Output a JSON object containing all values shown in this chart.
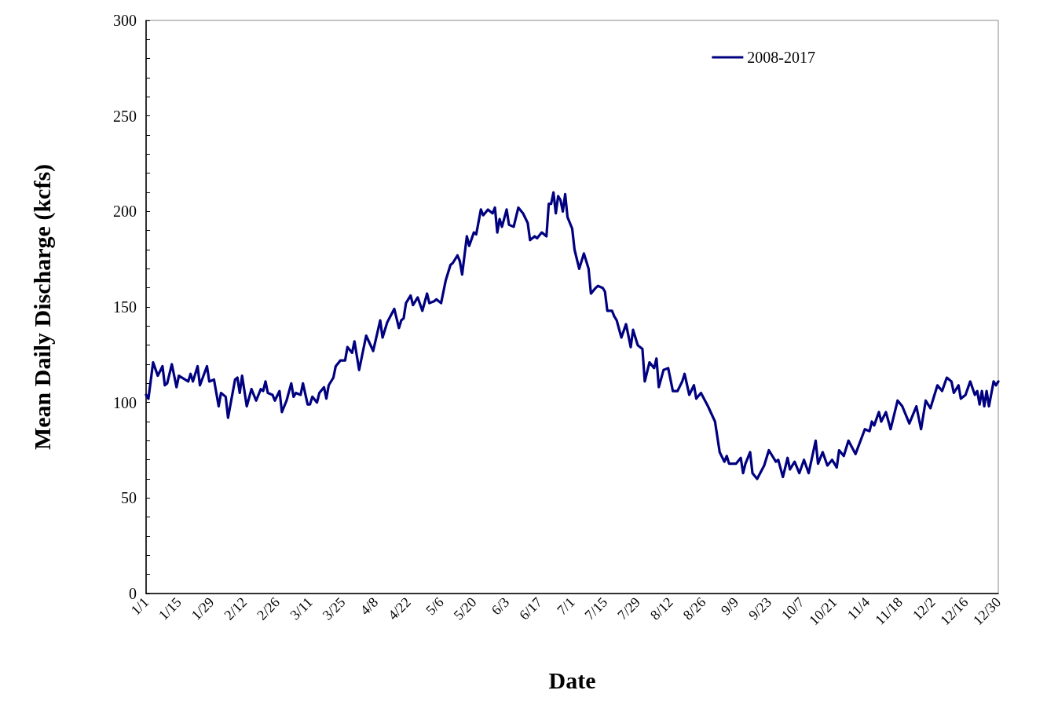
{
  "chart_data": {
    "type": "line",
    "xlabel": "Date",
    "ylabel": "Mean Daily Discharge (kcfs)",
    "legend": "top right",
    "marker": "none",
    "line_style": "solid",
    "xlim": [
      "--01-01",
      "--12-30"
    ],
    "xticks": [
      {
        "value": "--01-01",
        "label": "1/1"
      },
      {
        "value": "--01-15",
        "label": "1/15"
      },
      {
        "value": "--01-29",
        "label": "1/29"
      },
      {
        "value": "--02-12",
        "label": "2/12"
      },
      {
        "value": "--02-26",
        "label": "2/26"
      },
      {
        "value": "--03-11",
        "label": "3/11"
      },
      {
        "value": "--03-25",
        "label": "3/25"
      },
      {
        "value": "--04-08",
        "label": "4/8"
      },
      {
        "value": "--04-22",
        "label": "4/22"
      },
      {
        "value": "--05-06",
        "label": "5/6"
      },
      {
        "value": "--05-20",
        "label": "5/20"
      },
      {
        "value": "--06-03",
        "label": "6/3"
      },
      {
        "value": "--06-17",
        "label": "6/17"
      },
      {
        "value": "--07-01",
        "label": "7/1"
      },
      {
        "value": "--07-15",
        "label": "7/15"
      },
      {
        "value": "--07-29",
        "label": "7/29"
      },
      {
        "value": "--08-12",
        "label": "8/12"
      },
      {
        "value": "--08-26",
        "label": "8/26"
      },
      {
        "value": "--09-09",
        "label": "9/9"
      },
      {
        "value": "--09-23",
        "label": "9/23"
      },
      {
        "value": "--10-07",
        "label": "10/7"
      },
      {
        "value": "--10-21",
        "label": "10/21"
      },
      {
        "value": "--11-04",
        "label": "11/4"
      },
      {
        "value": "--11-18",
        "label": "11/18"
      },
      {
        "value": "--12-02",
        "label": "12/2"
      },
      {
        "value": "--12-16",
        "label": "12/16"
      },
      {
        "value": "--12-30",
        "label": "12/30"
      }
    ],
    "ylim": [
      0,
      300
    ],
    "yticks": [
      0,
      {
        "value": 10,
        "label": null
      },
      {
        "value": 20,
        "label": null
      },
      {
        "value": 30,
        "label": null
      },
      {
        "value": 40,
        "label": null
      },
      50,
      {
        "value": 60,
        "label": null
      },
      {
        "value": 70,
        "label": null
      },
      {
        "value": 80,
        "label": null
      },
      {
        "value": 90,
        "label": null
      },
      100,
      {
        "value": 110,
        "label": null
      },
      {
        "value": 120,
        "label": null
      },
      {
        "value": 130,
        "label": null
      },
      {
        "value": 140,
        "label": null
      },
      150,
      {
        "value": 160,
        "label": null
      },
      {
        "value": 170,
        "label": null
      },
      {
        "value": 180,
        "label": null
      },
      {
        "value": 190,
        "label": null
      },
      200,
      {
        "value": 210,
        "label": null
      },
      {
        "value": 220,
        "label": null
      },
      {
        "value": 230,
        "label": null
      },
      {
        "value": 240,
        "label": null
      },
      250,
      {
        "value": 260,
        "label": null
      },
      {
        "value": 270,
        "label": null
      },
      {
        "value": 280,
        "label": null
      },
      {
        "value": 290,
        "label": null
      },
      300
    ],
    "x": [
      "--01-01",
      "--01-02",
      "--01-04",
      "--01-06",
      "--01-08",
      "--01-09",
      "--01-10",
      "--01-12",
      "--01-14",
      "--01-15",
      "--01-19",
      "--01-20",
      "--01-21",
      "--01-23",
      "--01-24",
      "--01-27",
      "--01-28",
      "--01-30",
      "--02-01",
      "--02-02",
      "--02-04",
      "--02-05",
      "--02-08",
      "--02-09",
      "--02-10",
      "--02-11",
      "--02-13",
      "--02-15",
      "--02-17",
      "--02-19",
      "--02-20",
      "--02-21",
      "--02-22",
      "--02-24",
      "--02-25",
      "--02-27",
      "--02-28",
      "--03-01",
      "--03-03",
      "--03-04",
      "--03-05",
      "--03-07",
      "--03-08",
      "--03-10",
      "--03-11",
      "--03-12",
      "--03-14",
      "--03-15",
      "--03-17",
      "--03-18",
      "--03-19",
      "--03-21",
      "--03-22",
      "--03-24",
      "--03-26",
      "--03-27",
      "--03-29",
      "--03-30",
      "--04-01",
      "--04-04",
      "--04-07",
      "--04-10",
      "--04-11",
      "--04-13",
      "--04-16",
      "--04-18",
      "--04-19",
      "--04-20",
      "--04-21",
      "--04-23",
      "--04-24",
      "--04-26",
      "--04-28",
      "--04-30",
      "--05-01",
      "--05-03",
      "--05-04",
      "--05-06",
      "--05-08",
      "--05-10",
      "--05-11",
      "--05-13",
      "--05-14",
      "--05-15",
      "--05-17",
      "--05-18",
      "--05-20",
      "--05-21",
      "--05-23",
      "--05-24",
      "--05-26",
      "--05-28",
      "--05-29",
      "--05-30",
      "--05-31",
      "--06-01",
      "--06-03",
      "--06-04",
      "--06-06",
      "--06-08",
      "--06-10",
      "--06-12",
      "--06-13",
      "--06-15",
      "--06-16",
      "--06-18",
      "--06-20",
      "--06-21",
      "--06-22",
      "--06-23",
      "--06-24",
      "--06-25",
      "--06-26",
      "--06-27",
      "--06-28",
      "--06-29",
      "--07-01",
      "--07-02",
      "--07-04",
      "--07-06",
      "--07-08",
      "--07-09",
      "--07-11",
      "--07-12",
      "--07-14",
      "--07-15",
      "--07-16",
      "--07-18",
      "--07-19",
      "--07-20",
      "--07-22",
      "--07-24",
      "--07-26",
      "--07-27",
      "--07-29",
      "--07-31",
      "--08-01",
      "--08-03",
      "--08-05",
      "--08-06",
      "--08-07",
      "--08-09",
      "--08-11",
      "--08-13",
      "--08-15",
      "--08-17",
      "--08-18",
      "--08-20",
      "--08-22",
      "--08-23",
      "--08-25",
      "--08-28",
      "--08-31",
      "--09-02",
      "--09-04",
      "--09-05",
      "--09-06",
      "--09-09",
      "--09-11",
      "--09-12",
      "--09-13",
      "--09-15",
      "--09-16",
      "--09-18",
      "--09-21",
      "--09-23",
      "--09-26",
      "--09-27",
      "--09-29",
      "--10-01",
      "--10-02",
      "--10-04",
      "--10-06",
      "--10-08",
      "--10-10",
      "--10-13",
      "--10-14",
      "--10-16",
      "--10-18",
      "--10-20",
      "--10-22",
      "--10-23",
      "--10-25",
      "--10-27",
      "--10-30",
      "--11-03",
      "--11-05",
      "--11-06",
      "--11-07",
      "--11-09",
      "--11-10",
      "--11-12",
      "--11-14",
      "--11-17",
      "--11-19",
      "--11-22",
      "--11-25",
      "--11-27",
      "--11-29",
      "--12-01",
      "--12-02",
      "--12-04",
      "--12-06",
      "--12-08",
      "--12-10",
      "--12-11",
      "--12-13",
      "--12-14",
      "--12-16",
      "--12-18",
      "--12-20",
      "--12-21",
      "--12-22",
      "--12-23",
      "--12-24",
      "--12-25",
      "--12-26",
      "--12-28",
      "--12-29",
      "--12-30"
    ],
    "series": [
      {
        "name": "2008-2017",
        "color": "#000080",
        "values": [
          104,
          102,
          121,
          114,
          119,
          109,
          110,
          120,
          108,
          114,
          111,
          115,
          111,
          119,
          109,
          119,
          111,
          112,
          98,
          105,
          103,
          92,
          112,
          113,
          105,
          114,
          98,
          107,
          101,
          107,
          106,
          111,
          105,
          104,
          101,
          106,
          95,
          101,
          110,
          103,
          105,
          104,
          110,
          99,
          99,
          103,
          100,
          105,
          108,
          102,
          109,
          113,
          119,
          122,
          122,
          129,
          126,
          132,
          117,
          135,
          127,
          143,
          134,
          142,
          149,
          139,
          143,
          144,
          152,
          156,
          151,
          155,
          148,
          157,
          152,
          153,
          154,
          152,
          164,
          172,
          173,
          177,
          174,
          167,
          187,
          182,
          189,
          188,
          201,
          198,
          201,
          199,
          202,
          189,
          196,
          192,
          201,
          193,
          192,
          202,
          199,
          194,
          185,
          187,
          186,
          189,
          187,
          204,
          204,
          210,
          199,
          208,
          206,
          200,
          209,
          197,
          191,
          180,
          170,
          178,
          170,
          157,
          160,
          161,
          160,
          158,
          148,
          148,
          145,
          143,
          134,
          141,
          129,
          138,
          130,
          128,
          111,
          121,
          118,
          123,
          108,
          117,
          118,
          106,
          106,
          111,
          115,
          104,
          109,
          102,
          105,
          98,
          90,
          74,
          69,
          72,
          68,
          68,
          71,
          63,
          68,
          74,
          63,
          60,
          67,
          75,
          69,
          70,
          61,
          71,
          65,
          69,
          63,
          70,
          63,
          80,
          68,
          74,
          67,
          70,
          66,
          75,
          72,
          80,
          73,
          86,
          85,
          90,
          88,
          95,
          90,
          95,
          86,
          101,
          98,
          89,
          98,
          86,
          101,
          97,
          101,
          109,
          106,
          113,
          111,
          105,
          109,
          102,
          104,
          111,
          104,
          106,
          99,
          106,
          98,
          106,
          98,
          111,
          109,
          111
        ]
      }
    ]
  }
}
